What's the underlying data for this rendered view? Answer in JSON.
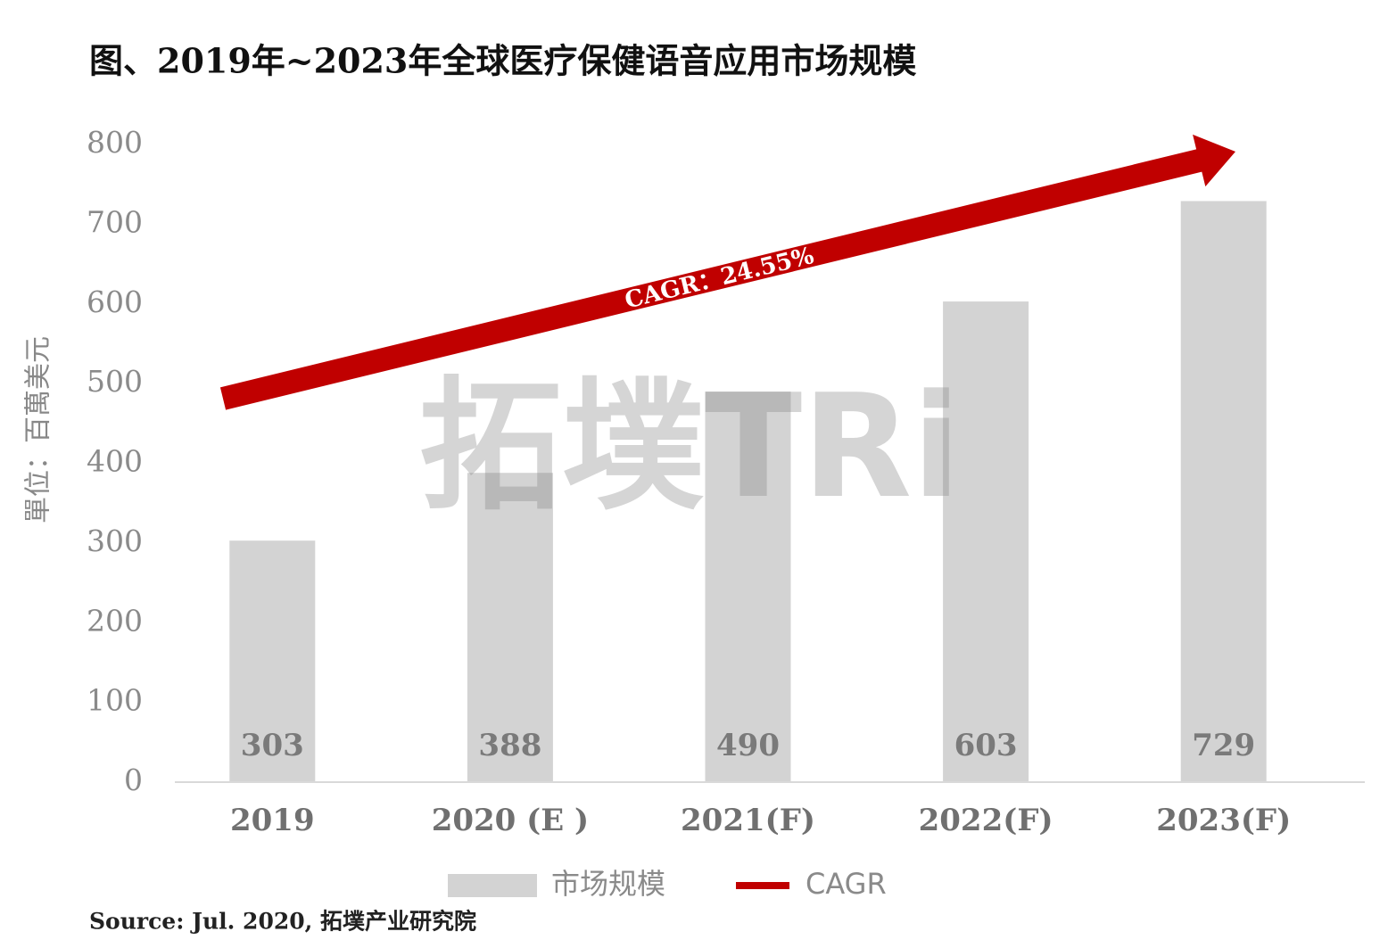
{
  "chart_data": {
    "type": "bar",
    "title": "图、2019年~2023年全球医疗保健语音应用市场规模",
    "y_label": "單位：百萬美元",
    "categories": [
      "2019",
      "2020 (E )",
      "2021(F)",
      "2022(F)",
      "2023(F)"
    ],
    "series": [
      {
        "name": "市场规模",
        "color": "#d3d3d3",
        "values": [
          303,
          388,
          490,
          603,
          729
        ]
      }
    ],
    "cagr": {
      "name": "CAGR",
      "label": "CAGR：24.55%",
      "color": "#c00000"
    },
    "ylim": [
      0,
      800
    ],
    "yticks": [
      0,
      100,
      200,
      300,
      400,
      500,
      600,
      700,
      800
    ],
    "grid": false,
    "watermark": "拓墣TRi",
    "source": "Source: Jul. 2020, 拓墣产业研究院"
  }
}
